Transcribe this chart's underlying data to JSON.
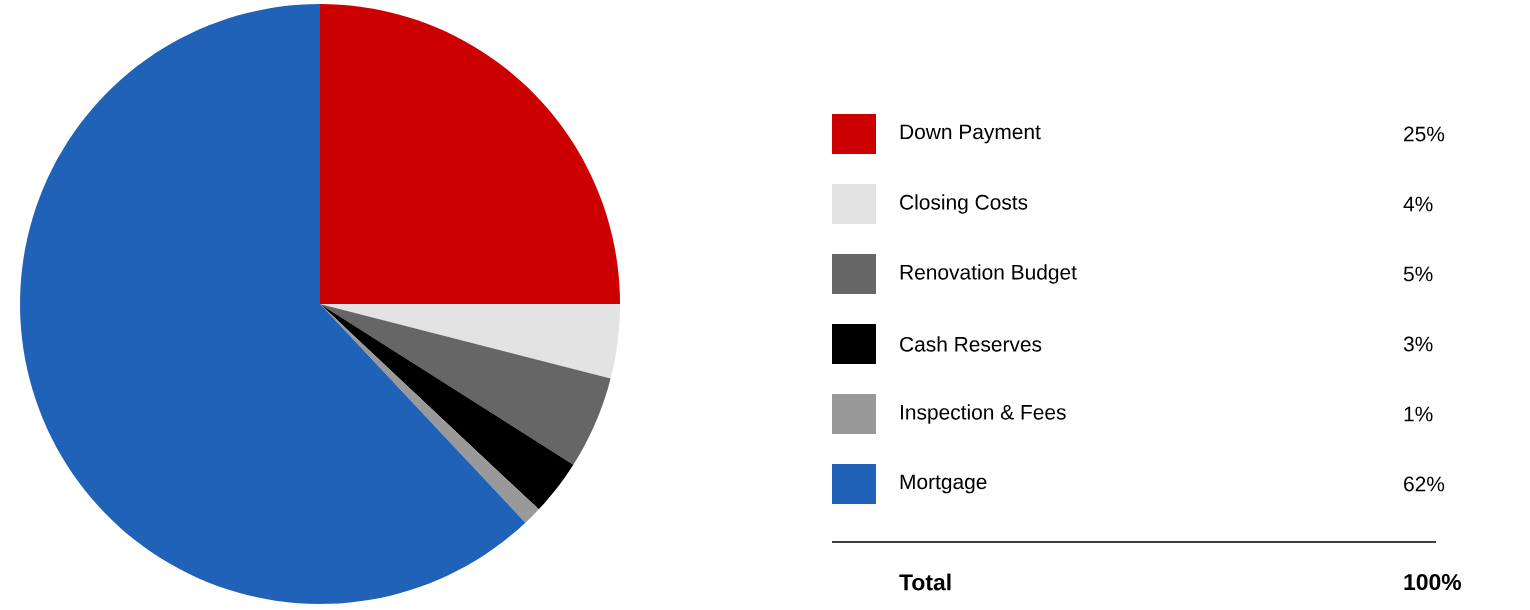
{
  "chart_data": {
    "type": "pie",
    "categories": [
      "Down Payment",
      "Closing Costs",
      "Renovation Budget",
      "Cash Reserves",
      "Inspection & Fees",
      "Mortgage"
    ],
    "values": [
      25,
      4,
      5,
      3,
      1,
      62
    ],
    "colors": [
      "#cc0000",
      "#e3e3e3",
      "#666666",
      "#000000",
      "#999999",
      "#1f62b8"
    ],
    "value_labels": [
      "25%",
      "4%",
      "5%",
      "3%",
      "1%",
      "62%"
    ],
    "legend": "right",
    "annotations": [
      "Total",
      "100%"
    ]
  }
}
